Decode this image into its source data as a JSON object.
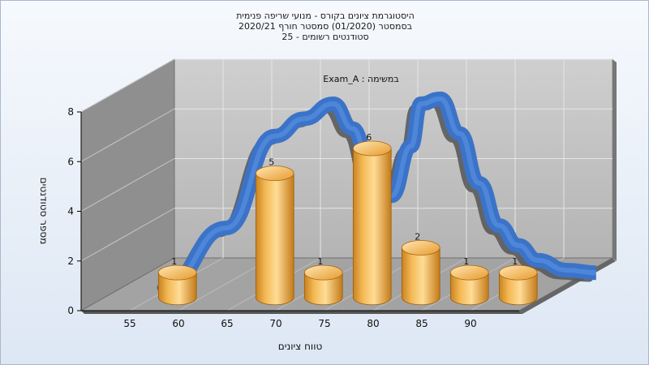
{
  "chart_data": {
    "type": "bar",
    "title_lines": [
      "היסטוגרמת ציונים בקורס - מנועי שריפה פנימית",
      "בסמסטר  (01/2020)  סמסטר חורף 2020/21",
      "סטודנטים רשומים - 25"
    ],
    "inner_label": "במשימה : Exam_A",
    "xlabel": "טווח ציונים",
    "ylabel": "מספר סטודנטים",
    "x_ticks": [
      "55",
      "60",
      "65",
      "70",
      "75",
      "80",
      "85",
      "90"
    ],
    "y_ticks": [
      "0",
      "2",
      "4",
      "6",
      "8"
    ],
    "ylim": [
      0,
      8
    ],
    "bins": [
      55,
      65,
      70,
      75,
      80,
      85,
      90
    ],
    "values": [
      1,
      5,
      1,
      6,
      2,
      1,
      1
    ],
    "data_labels": [
      "1",
      "5",
      "1",
      "6",
      "2",
      "1",
      "1"
    ],
    "curve": {
      "x": [
        52,
        58,
        63,
        66,
        69,
        71,
        73,
        75,
        77,
        78,
        80,
        82,
        84,
        86,
        88,
        90,
        93,
        96
      ],
      "y": [
        -0.4,
        1.8,
        5.5,
        6.2,
        6.8,
        5.8,
        3.9,
        3.1,
        5.1,
        6.8,
        7.0,
        5.6,
        3.6,
        1.9,
        1.1,
        0.5,
        0.1,
        0.0
      ]
    },
    "colors": {
      "bar_light": "#ffe2a3",
      "bar_mid": "#f0a83a",
      "bar_dark": "#b96f12",
      "curve": "#3b73c8",
      "back_wall": "#bdbdbd",
      "side_wall": "#8f8f8f",
      "floor": "#a3a3a3"
    }
  }
}
